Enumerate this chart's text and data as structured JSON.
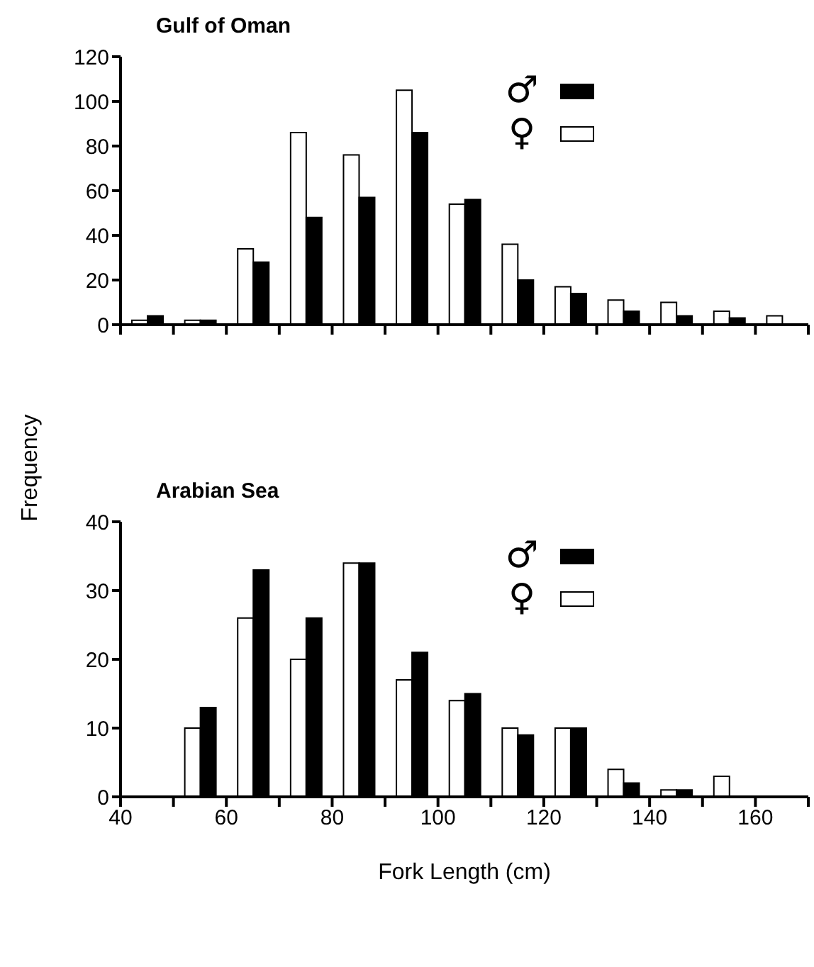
{
  "chart_data": [
    {
      "type": "bar",
      "title": "Gulf of Oman",
      "ylabel": "Frequency",
      "x": [
        45,
        55,
        65,
        75,
        85,
        95,
        105,
        115,
        125,
        135,
        145,
        155,
        165
      ],
      "series": [
        {
          "name": "♀",
          "color": "#ffffff",
          "values": [
            2,
            2,
            34,
            86,
            76,
            105,
            54,
            36,
            17,
            11,
            10,
            6,
            4
          ]
        },
        {
          "name": "♂",
          "color": "#000000",
          "values": [
            4,
            2,
            28,
            48,
            57,
            86,
            56,
            20,
            14,
            6,
            4,
            3,
            null
          ]
        }
      ],
      "xlim": [
        40,
        170
      ],
      "xticks": [
        40,
        {
          "value": 50,
          "label": null
        },
        60,
        {
          "value": 70,
          "label": null
        },
        80,
        {
          "value": 90,
          "label": null
        },
        100,
        {
          "value": 110,
          "label": null
        },
        120,
        {
          "value": 130,
          "label": null
        },
        140,
        {
          "value": 150,
          "label": null
        },
        160,
        {
          "value": 170,
          "label": null
        }
      ],
      "ylim": [
        0,
        120
      ],
      "yticks": [
        0,
        20,
        40,
        60,
        80,
        100,
        120
      ],
      "grid": false,
      "legend": "top right",
      "tick_labels": "y"
    },
    {
      "type": "bar",
      "title": "Arabian Sea",
      "xlabel": "Fork Length (cm)",
      "x": [
        55,
        65,
        75,
        85,
        95,
        105,
        115,
        125,
        135,
        145,
        155
      ],
      "series": [
        {
          "name": "♀",
          "color": "#ffffff",
          "values": [
            10,
            26,
            20,
            34,
            17,
            14,
            10,
            10,
            4,
            1,
            3
          ]
        },
        {
          "name": "♂",
          "color": "#000000",
          "values": [
            13,
            33,
            26,
            34,
            21,
            15,
            9,
            10,
            2,
            1,
            null
          ]
        }
      ],
      "xlim": [
        40,
        170
      ],
      "xticks": [
        40,
        {
          "value": 50,
          "label": null
        },
        60,
        {
          "value": 70,
          "label": null
        },
        80,
        {
          "value": 90,
          "label": null
        },
        100,
        {
          "value": 110,
          "label": null
        },
        120,
        {
          "value": 130,
          "label": null
        },
        140,
        {
          "value": 150,
          "label": null
        },
        160,
        {
          "value": 170,
          "label": null
        }
      ],
      "ylim": [
        0,
        40
      ],
      "yticks": [
        0,
        10,
        20,
        30,
        40
      ],
      "grid": false,
      "legend": "top right"
    }
  ]
}
